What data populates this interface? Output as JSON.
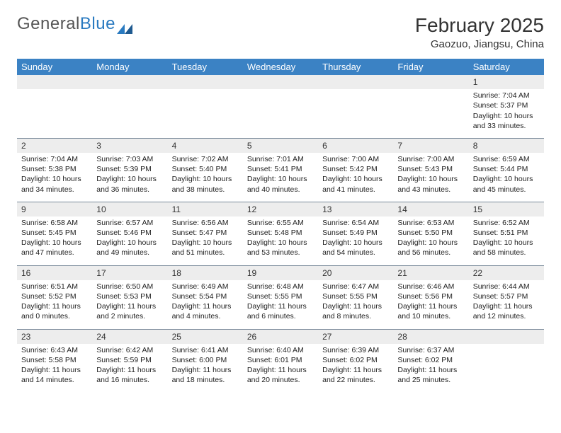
{
  "logo": {
    "text1": "General",
    "text2": "Blue"
  },
  "title": "February 2025",
  "location": "Gaozuo, Jiangsu, China",
  "colors": {
    "header_bg": "#3b82c4",
    "header_text": "#ffffff",
    "daynum_bg": "#ededed",
    "border": "#7a8a9a",
    "text": "#222222",
    "logo_gray": "#555555",
    "logo_blue": "#2a7ac0"
  },
  "weekdays": [
    "Sunday",
    "Monday",
    "Tuesday",
    "Wednesday",
    "Thursday",
    "Friday",
    "Saturday"
  ],
  "weeks": [
    [
      null,
      null,
      null,
      null,
      null,
      null,
      {
        "n": "1",
        "sunrise": "7:04 AM",
        "sunset": "5:37 PM",
        "dh": "10",
        "dm": "33"
      }
    ],
    [
      {
        "n": "2",
        "sunrise": "7:04 AM",
        "sunset": "5:38 PM",
        "dh": "10",
        "dm": "34"
      },
      {
        "n": "3",
        "sunrise": "7:03 AM",
        "sunset": "5:39 PM",
        "dh": "10",
        "dm": "36"
      },
      {
        "n": "4",
        "sunrise": "7:02 AM",
        "sunset": "5:40 PM",
        "dh": "10",
        "dm": "38"
      },
      {
        "n": "5",
        "sunrise": "7:01 AM",
        "sunset": "5:41 PM",
        "dh": "10",
        "dm": "40"
      },
      {
        "n": "6",
        "sunrise": "7:00 AM",
        "sunset": "5:42 PM",
        "dh": "10",
        "dm": "41"
      },
      {
        "n": "7",
        "sunrise": "7:00 AM",
        "sunset": "5:43 PM",
        "dh": "10",
        "dm": "43"
      },
      {
        "n": "8",
        "sunrise": "6:59 AM",
        "sunset": "5:44 PM",
        "dh": "10",
        "dm": "45"
      }
    ],
    [
      {
        "n": "9",
        "sunrise": "6:58 AM",
        "sunset": "5:45 PM",
        "dh": "10",
        "dm": "47"
      },
      {
        "n": "10",
        "sunrise": "6:57 AM",
        "sunset": "5:46 PM",
        "dh": "10",
        "dm": "49"
      },
      {
        "n": "11",
        "sunrise": "6:56 AM",
        "sunset": "5:47 PM",
        "dh": "10",
        "dm": "51"
      },
      {
        "n": "12",
        "sunrise": "6:55 AM",
        "sunset": "5:48 PM",
        "dh": "10",
        "dm": "53"
      },
      {
        "n": "13",
        "sunrise": "6:54 AM",
        "sunset": "5:49 PM",
        "dh": "10",
        "dm": "54"
      },
      {
        "n": "14",
        "sunrise": "6:53 AM",
        "sunset": "5:50 PM",
        "dh": "10",
        "dm": "56"
      },
      {
        "n": "15",
        "sunrise": "6:52 AM",
        "sunset": "5:51 PM",
        "dh": "10",
        "dm": "58"
      }
    ],
    [
      {
        "n": "16",
        "sunrise": "6:51 AM",
        "sunset": "5:52 PM",
        "dh": "11",
        "dm": "0"
      },
      {
        "n": "17",
        "sunrise": "6:50 AM",
        "sunset": "5:53 PM",
        "dh": "11",
        "dm": "2"
      },
      {
        "n": "18",
        "sunrise": "6:49 AM",
        "sunset": "5:54 PM",
        "dh": "11",
        "dm": "4"
      },
      {
        "n": "19",
        "sunrise": "6:48 AM",
        "sunset": "5:55 PM",
        "dh": "11",
        "dm": "6"
      },
      {
        "n": "20",
        "sunrise": "6:47 AM",
        "sunset": "5:55 PM",
        "dh": "11",
        "dm": "8"
      },
      {
        "n": "21",
        "sunrise": "6:46 AM",
        "sunset": "5:56 PM",
        "dh": "11",
        "dm": "10"
      },
      {
        "n": "22",
        "sunrise": "6:44 AM",
        "sunset": "5:57 PM",
        "dh": "11",
        "dm": "12"
      }
    ],
    [
      {
        "n": "23",
        "sunrise": "6:43 AM",
        "sunset": "5:58 PM",
        "dh": "11",
        "dm": "14"
      },
      {
        "n": "24",
        "sunrise": "6:42 AM",
        "sunset": "5:59 PM",
        "dh": "11",
        "dm": "16"
      },
      {
        "n": "25",
        "sunrise": "6:41 AM",
        "sunset": "6:00 PM",
        "dh": "11",
        "dm": "18"
      },
      {
        "n": "26",
        "sunrise": "6:40 AM",
        "sunset": "6:01 PM",
        "dh": "11",
        "dm": "20"
      },
      {
        "n": "27",
        "sunrise": "6:39 AM",
        "sunset": "6:02 PM",
        "dh": "11",
        "dm": "22"
      },
      {
        "n": "28",
        "sunrise": "6:37 AM",
        "sunset": "6:02 PM",
        "dh": "11",
        "dm": "25"
      },
      null
    ]
  ]
}
